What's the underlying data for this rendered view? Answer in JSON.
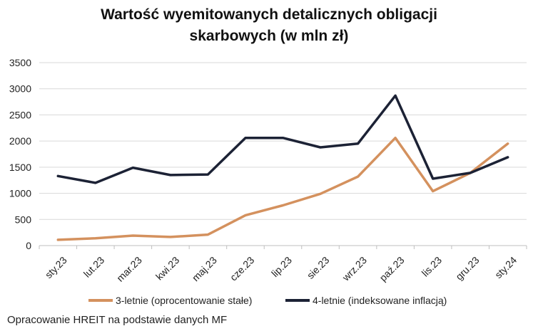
{
  "chart_data": {
    "type": "line",
    "title_lines": [
      "Wartość wyemitowanych detalicznych obligacji",
      "skarbowych (w mln zł)"
    ],
    "categories": [
      "sty.23",
      "lut.23",
      "mar.23",
      "kwi.23",
      "maj.23",
      "cze.23",
      "lip.23",
      "sie.23",
      "wrz.23",
      "paź.23",
      "lis.23",
      "gru.23",
      "sty.24"
    ],
    "ylim": [
      0,
      3500
    ],
    "yticks": [
      0,
      500,
      1000,
      1500,
      2000,
      2500,
      3000,
      3500
    ],
    "grid": true,
    "legend_position": "bottom",
    "series": [
      {
        "name": "3-letnie (oprocentowanie stałe)",
        "color": "#d4915e",
        "values": [
          110,
          140,
          190,
          165,
          210,
          580,
          770,
          990,
          1320,
          2060,
          1040,
          1390,
          1950
        ]
      },
      {
        "name": "4-letnie (indeksowane inflacją)",
        "color": "#1c2235",
        "values": [
          1330,
          1200,
          1490,
          1350,
          1360,
          2060,
          2060,
          1880,
          1950,
          2870,
          1280,
          1390,
          1690
        ]
      }
    ]
  },
  "source": "Opracowanie HREIT na podstawie danych MF"
}
